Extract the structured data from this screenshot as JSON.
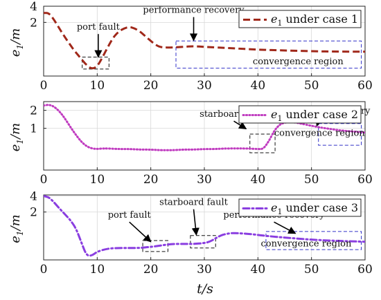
{
  "figure": {
    "xlabel": "t/s",
    "xlim": [
      0,
      60
    ],
    "xticks": [
      "0",
      "10",
      "20",
      "30",
      "40",
      "50",
      "60"
    ]
  },
  "colors": {
    "case1": "#a0281a",
    "case2": "#c03cc0",
    "case3": "#8a3ee0",
    "box": "#3030c8",
    "grid": "#d8d8d8"
  },
  "chart_data": [
    {
      "type": "line",
      "ylabel": "e1/m",
      "xlim": [
        0,
        60
      ],
      "ylim": [
        0.2,
        4
      ],
      "yscale": "log",
      "yticks": [
        "2",
        "4"
      ],
      "grid": true,
      "legend": {
        "position": "top-right",
        "label": "e1 under case 1"
      },
      "series": [
        {
          "name": "e1 under case 1",
          "style": "dashed",
          "x": [
            0,
            1,
            2,
            3,
            4,
            5,
            6,
            7,
            8,
            9,
            10,
            11,
            12,
            13,
            14,
            15,
            16,
            17,
            18,
            19,
            20,
            21,
            22,
            24,
            26,
            28,
            30,
            35,
            40,
            45,
            50,
            55,
            60
          ],
          "y": [
            3.0,
            3.0,
            2.2,
            1.5,
            1.05,
            0.75,
            0.55,
            0.42,
            0.32,
            0.27,
            0.3,
            0.45,
            0.7,
            1.05,
            1.35,
            1.55,
            1.65,
            1.55,
            1.35,
            1.1,
            0.9,
            0.75,
            0.68,
            0.68,
            0.7,
            0.72,
            0.7,
            0.66,
            0.62,
            0.6,
            0.58,
            0.57,
            0.57
          ]
        }
      ],
      "annotations": [
        {
          "text": "port fault",
          "x": 10.2,
          "y": 1.45,
          "arrow_to": [
            10.2,
            0.45
          ]
        },
        {
          "text": "performance recovery",
          "x": 28,
          "y": 3.0,
          "arrow_to": [
            28,
            0.92
          ]
        },
        {
          "text": "convergence region",
          "x": 47.5,
          "y": 0.33
        }
      ],
      "boxes": [
        {
          "x": [
            7.2,
            12.2
          ],
          "y": [
            0.27,
            0.45
          ]
        },
        {
          "x": [
            24.7,
            59.3
          ],
          "y": [
            0.28,
            0.9
          ]
        }
      ]
    },
    {
      "type": "line",
      "ylabel": "e1/m",
      "xlim": [
        0,
        60
      ],
      "ylim": [
        0.2,
        2.8
      ],
      "yscale": "log",
      "yticks": [
        "1",
        "2"
      ],
      "grid": true,
      "legend": {
        "position": "top-right",
        "label": "e1 under case 2"
      },
      "series": [
        {
          "name": "e1 under case 2",
          "style": "dotted",
          "x": [
            0,
            1,
            2,
            3,
            4,
            5,
            6,
            7,
            8,
            9,
            10,
            11,
            12,
            14,
            16,
            18,
            20,
            22,
            24,
            26,
            28,
            30,
            32,
            34,
            36,
            38,
            40,
            41,
            42,
            43,
            44,
            45,
            46,
            47,
            48,
            50,
            52,
            54,
            56,
            58,
            60
          ],
          "y": [
            2.4,
            2.5,
            2.3,
            1.9,
            1.45,
            1.05,
            0.78,
            0.6,
            0.5,
            0.46,
            0.45,
            0.46,
            0.46,
            0.45,
            0.45,
            0.44,
            0.44,
            0.43,
            0.43,
            0.44,
            0.44,
            0.45,
            0.45,
            0.46,
            0.46,
            0.46,
            0.45,
            0.45,
            0.6,
            0.9,
            1.15,
            1.25,
            1.28,
            1.25,
            1.2,
            1.1,
            1.02,
            0.96,
            0.91,
            0.88,
            0.85
          ]
        }
      ],
      "annotations": [
        {
          "text": "starboard fault",
          "x": 35.5,
          "y": 1.55,
          "arrow_to": [
            37.8,
            0.98
          ]
        },
        {
          "text": "performance recovery",
          "x": 51.5,
          "y": 1.75,
          "arrow_to": [
            51,
            1.1
          ]
        },
        {
          "text": "convergence region",
          "x": 51.5,
          "y": 0.75
        }
      ],
      "boxes": [
        {
          "x": [
            38.5,
            43.2
          ],
          "y": [
            0.39,
            0.8
          ]
        },
        {
          "x": [
            51.3,
            59.3
          ],
          "y": [
            0.52,
            1.2
          ]
        }
      ]
    },
    {
      "type": "line",
      "ylabel": "e1/m",
      "xlim": [
        0,
        60
      ],
      "ylim": [
        0.25,
        4.2
      ],
      "yscale": "log",
      "yticks": [
        "2",
        "4"
      ],
      "grid": true,
      "legend": {
        "position": "top-right",
        "label": "e1 under case 3"
      },
      "series": [
        {
          "name": "e1 under case 3",
          "style": "dash-dot",
          "x": [
            0,
            1,
            2,
            3,
            4,
            5,
            6,
            7,
            8,
            9,
            10,
            12,
            14,
            16,
            18,
            20,
            22,
            24,
            26,
            27,
            28,
            30,
            31,
            32,
            33,
            34,
            35,
            36,
            38,
            40,
            42,
            45,
            50,
            55,
            60
          ],
          "y": [
            4.0,
            3.8,
            3.0,
            2.3,
            1.8,
            1.4,
            1.0,
            0.55,
            0.3,
            0.3,
            0.36,
            0.41,
            0.42,
            0.42,
            0.42,
            0.44,
            0.47,
            0.5,
            0.5,
            0.5,
            0.5,
            0.52,
            0.55,
            0.63,
            0.72,
            0.77,
            0.8,
            0.8,
            0.78,
            0.74,
            0.7,
            0.66,
            0.6,
            0.57,
            0.55
          ]
        }
      ],
      "annotations": [
        {
          "text": "port fault",
          "x": 16,
          "y": 1.55,
          "arrow_to": [
            20,
            0.55
          ]
        },
        {
          "text": "starboard fault",
          "x": 28,
          "y": 2.7,
          "arrow_to": [
            28.5,
            0.74
          ]
        },
        {
          "text": "performance recovery",
          "x": 43,
          "y": 1.55,
          "arrow_to": [
            47,
            0.79
          ]
        },
        {
          "text": "convergence region",
          "x": 49,
          "y": 0.45
        }
      ],
      "boxes": [
        {
          "x": [
            18.5,
            23.2
          ],
          "y": [
            0.36,
            0.58
          ]
        },
        {
          "x": [
            27.4,
            32.1
          ],
          "y": [
            0.42,
            0.72
          ]
        },
        {
          "x": [
            41.5,
            59.3
          ],
          "y": [
            0.39,
            0.86
          ]
        }
      ]
    }
  ]
}
